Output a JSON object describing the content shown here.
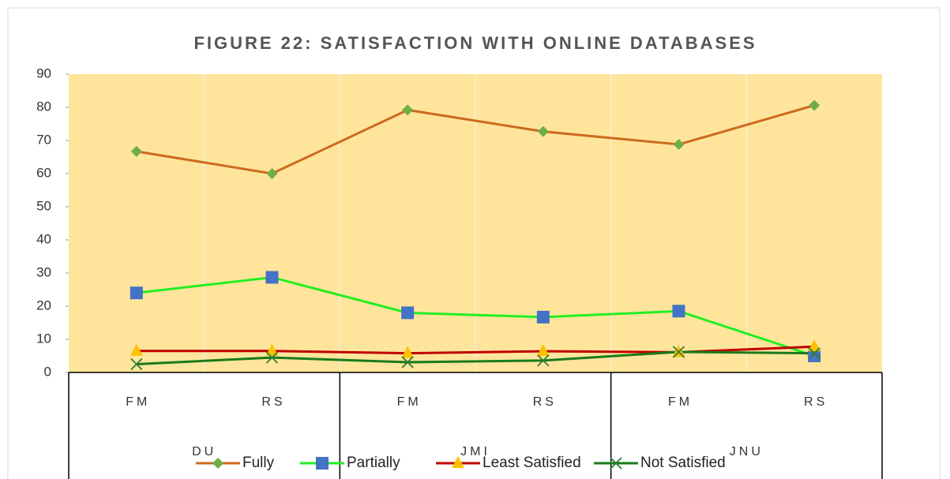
{
  "chart_data": {
    "type": "line",
    "title": "FIGURE 22: SATISFACTION WITH ONLINE DATABASES",
    "categories": [
      "FM",
      "RS",
      "FM",
      "RS",
      "FM",
      "RS"
    ],
    "groups": [
      "DU",
      "JMI",
      "JNU"
    ],
    "series": [
      {
        "name": "Fully",
        "color": "#cc6a1e",
        "marker": "diamond",
        "marker_color": "#70ad47",
        "values": [
          66.7,
          60,
          79.2,
          72.7,
          68.8,
          80.6
        ]
      },
      {
        "name": "Partially",
        "color": "#22ee22",
        "marker": "square",
        "marker_color": "#4472c4",
        "values": [
          24,
          28.7,
          18,
          16.7,
          18.5,
          5
        ]
      },
      {
        "name": "Least Satisfied",
        "color": "#c00000",
        "marker": "triangle",
        "marker_color": "#ffc000",
        "values": [
          6.5,
          6.5,
          5.8,
          6.4,
          6.1,
          7.8
        ]
      },
      {
        "name": "Not Satisfied",
        "color": "#1a7a1a",
        "marker": "x",
        "marker_color": "#2e7d32",
        "values": [
          2.5,
          4.5,
          3.1,
          3.6,
          6.2,
          5.8
        ]
      }
    ],
    "ylim": [
      0,
      90
    ],
    "yticks": [
      0,
      10,
      20,
      30,
      40,
      50,
      60,
      70,
      80,
      90
    ],
    "plot_background": "#fee59b"
  }
}
